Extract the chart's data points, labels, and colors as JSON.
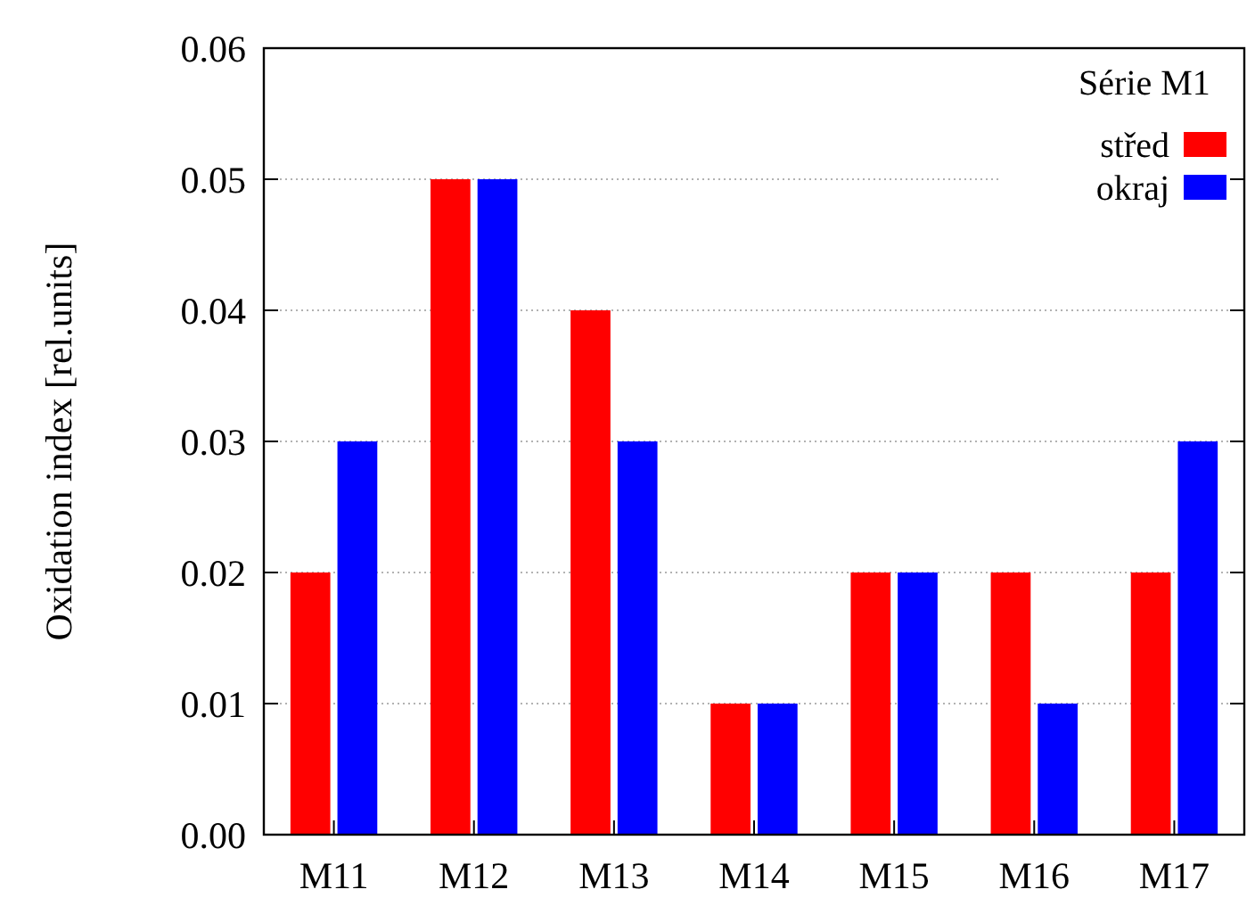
{
  "chart_data": {
    "type": "bar",
    "ylabel": "Oxidation index [rel.units]",
    "legend_title": "Série M1",
    "categories": [
      "M11",
      "M12",
      "M13",
      "M14",
      "M15",
      "M16",
      "M17"
    ],
    "series": [
      {
        "name": "střed",
        "color": "#ff0000",
        "values": [
          0.02,
          0.05,
          0.04,
          0.01,
          0.02,
          0.02,
          0.02
        ]
      },
      {
        "name": "okraj",
        "color": "#0000ff",
        "values": [
          0.03,
          0.05,
          0.03,
          0.01,
          0.02,
          0.01,
          0.03
        ]
      }
    ],
    "ylim": [
      0,
      0.06
    ],
    "yticks": [
      {
        "value": 0,
        "label": "0.00"
      },
      0.01,
      0.02,
      0.03,
      0.04,
      0.05,
      0.06
    ],
    "grid": "y",
    "legend": "top right"
  }
}
